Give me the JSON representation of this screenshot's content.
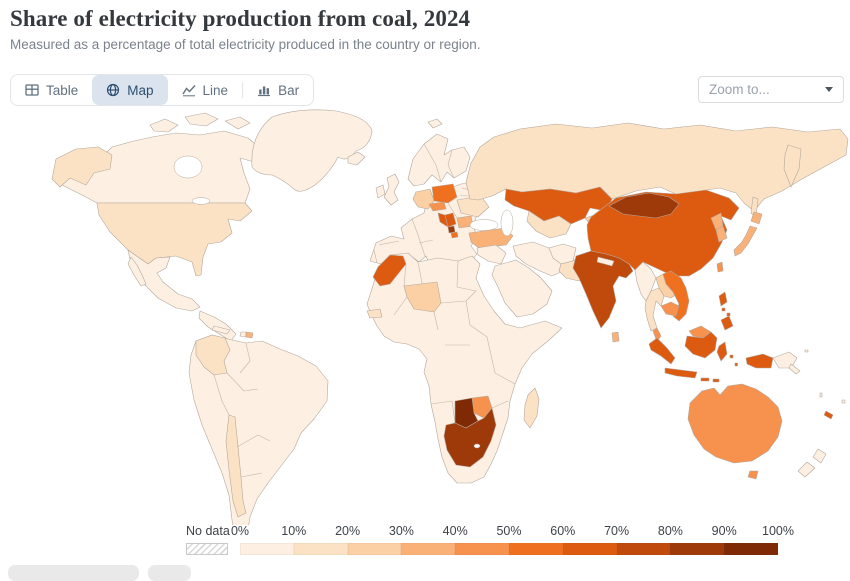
{
  "header": {
    "title": "Share of electricity production from coal, 2024",
    "subtitle": "Measured as a percentage of total electricity produced in the country or region."
  },
  "toolbar": {
    "tabs": [
      {
        "id": "table",
        "label": "Table",
        "active": false
      },
      {
        "id": "map",
        "label": "Map",
        "active": true
      },
      {
        "id": "line",
        "label": "Line",
        "active": false
      },
      {
        "id": "bar",
        "label": "Bar",
        "active": false
      }
    ],
    "zoom_dropdown": {
      "placeholder": "Zoom to..."
    }
  },
  "colors": {
    "title_text": "#35393d",
    "subtitle_text": "#7a828c",
    "tab_text": "#62717f",
    "tab_active_text": "#2d4e6f",
    "tab_active_bg": "#dbe4ee",
    "control_border": "#d9dce1",
    "placeholder_text": "#9aa2ac",
    "legend_text": "#3d4248",
    "map_border": "#b3a79c",
    "bin0": "#fdf0e2"
  },
  "chart_data": {
    "type": "choropleth_map",
    "title": "Share of electricity production from coal, 2024",
    "unit": "%",
    "year": 2024,
    "legend": {
      "no_data_label": "No data",
      "bin_size": 10,
      "tick_labels": [
        "0%",
        "10%",
        "20%",
        "30%",
        "40%",
        "50%",
        "60%",
        "70%",
        "80%",
        "90%",
        "100%"
      ],
      "bin_colors": [
        "#fdf0e2",
        "#fce2c5",
        "#fbd0a4",
        "#fab178",
        "#f7924e",
        "#ef7120",
        "#dd5a11",
        "#bf4a0c",
        "#9e3a0a",
        "#7f2a04"
      ]
    },
    "countries": [
      {
        "id": "united-states",
        "name": "United States",
        "value": 15
      },
      {
        "id": "canada",
        "name": "Canada",
        "value": 5
      },
      {
        "id": "greenland",
        "name": "Greenland",
        "value": 2
      },
      {
        "id": "mexico",
        "name": "Mexico",
        "value": 4
      },
      {
        "id": "dominican-republic",
        "name": "Dominican Republic",
        "value": 32
      },
      {
        "id": "colombia",
        "name": "Colombia",
        "value": 12
      },
      {
        "id": "chile",
        "name": "Chile",
        "value": 15
      },
      {
        "id": "iceland",
        "name": "Iceland",
        "value": 1
      },
      {
        "id": "united-kingdom",
        "name": "United Kingdom",
        "value": 2
      },
      {
        "id": "ireland",
        "name": "Ireland",
        "value": 3
      },
      {
        "id": "germany",
        "name": "Germany",
        "value": 23
      },
      {
        "id": "poland",
        "name": "Poland",
        "value": 57
      },
      {
        "id": "czechia",
        "name": "Czechia",
        "value": 40
      },
      {
        "id": "ukraine",
        "name": "Ukraine",
        "value": 15
      },
      {
        "id": "serbia",
        "name": "Serbia",
        "value": 62
      },
      {
        "id": "bosnia-and-herzegovina",
        "name": "Bosnia and Herzegovina",
        "value": 60
      },
      {
        "id": "kosovo",
        "name": "Kosovo",
        "value": 88
      },
      {
        "id": "north-macedonia",
        "name": "North Macedonia",
        "value": 55
      },
      {
        "id": "bulgaria",
        "name": "Bulgaria",
        "value": 38
      },
      {
        "id": "turkey",
        "name": "Turkey",
        "value": 35
      },
      {
        "id": "russia",
        "name": "Russia",
        "value": 16
      },
      {
        "id": "kazakhstan",
        "name": "Kazakhstan",
        "value": 63
      },
      {
        "id": "uzbekistan",
        "name": "Uzbekistan",
        "value": 12
      },
      {
        "id": "kyrgyzstan",
        "name": "Kyrgyzstan",
        "value": 28
      },
      {
        "id": "morocco",
        "name": "Morocco",
        "value": 62
      },
      {
        "id": "niger",
        "name": "Niger",
        "value": 28
      },
      {
        "id": "senegal",
        "name": "Senegal",
        "value": 15
      },
      {
        "id": "south-africa",
        "name": "South Africa",
        "value": 84
      },
      {
        "id": "botswana",
        "name": "Botswana",
        "value": 92
      },
      {
        "id": "zimbabwe",
        "name": "Zimbabwe",
        "value": 42
      },
      {
        "id": "madagascar",
        "name": "Madagascar",
        "value": 14
      },
      {
        "id": "pakistan",
        "name": "Pakistan",
        "value": 14
      },
      {
        "id": "india",
        "name": "India",
        "value": 74
      },
      {
        "id": "sri-lanka",
        "name": "Sri Lanka",
        "value": 35
      },
      {
        "id": "china",
        "name": "China",
        "value": 61
      },
      {
        "id": "mongolia",
        "name": "Mongolia",
        "value": 85
      },
      {
        "id": "north-korea",
        "name": "North Korea",
        "value": 35
      },
      {
        "id": "south-korea",
        "name": "South Korea",
        "value": 30
      },
      {
        "id": "japan",
        "name": "Japan",
        "value": 31
      },
      {
        "id": "taiwan",
        "name": "Taiwan",
        "value": 45
      },
      {
        "id": "myanmar",
        "name": "Myanmar",
        "value": 8
      },
      {
        "id": "thailand",
        "name": "Thailand",
        "value": 18
      },
      {
        "id": "laos",
        "name": "Laos",
        "value": 25
      },
      {
        "id": "vietnam",
        "name": "Vietnam",
        "value": 50
      },
      {
        "id": "cambodia",
        "name": "Cambodia",
        "value": 45
      },
      {
        "id": "malaysia",
        "name": "Malaysia",
        "value": 43
      },
      {
        "id": "indonesia",
        "name": "Indonesia",
        "value": 63
      },
      {
        "id": "philippines",
        "name": "Philippines",
        "value": 62
      },
      {
        "id": "papua-new-guinea",
        "name": "Papua New Guinea",
        "value": 1
      },
      {
        "id": "australia",
        "name": "Australia",
        "value": 46
      },
      {
        "id": "new-zealand",
        "name": "New Zealand",
        "value": 4
      },
      {
        "id": "new-caledonia",
        "name": "New Caledonia",
        "value": 60
      }
    ]
  }
}
